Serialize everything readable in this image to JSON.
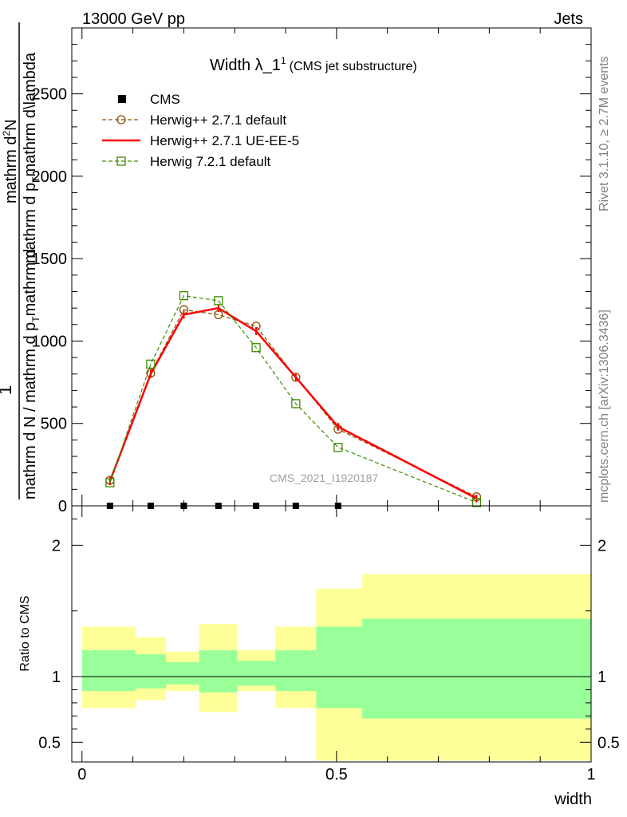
{
  "header": {
    "left": "13000 GeV pp",
    "right": "Jets"
  },
  "side_texts": {
    "rivet": "Rivet 3.1.10, ≥ 2.7M events",
    "mcplots": "mcplots.cern.ch [arXiv:1306.3436]"
  },
  "chart_data": [
    {
      "type": "line",
      "title_main": "Width λ_1",
      "title_sup": "1",
      "title_note": "(CMS jet substructure)",
      "ylabel_num": "1",
      "ylabel_line1": "mathrm d N / mathrm d p",
      "ylabel_sub1": "T",
      "ylabel_line2": "mathrm d",
      "ylabel_den_line1": "mathrm d N / mathrm d p",
      "ylabel_den_sub1": "T",
      "ylabel_den_line2": "mathrm d",
      "ylabel_top_num": "mathrm d",
      "ylabel_top_N": "N",
      "ylabel_top_den": "mathrm d p",
      "ylabel_top_den_sub": "T",
      "ylabel_top_den2": "mathrm d\\lambda",
      "ylabel_raw": "mathrm d²N / mathrm d p_T mathrm d \\lambda",
      "watermark": "CMS_2021_I1920187",
      "ylim": [
        0,
        2900
      ],
      "xlim": [
        -0.02,
        1.0
      ],
      "yticks": [
        0,
        500,
        1000,
        1500,
        2000,
        2500
      ],
      "ytick_labels": [
        "0",
        "500",
        "1000",
        "1500",
        "2000",
        "2500"
      ],
      "legend_position": "top-left",
      "series": [
        {
          "name": "CMS",
          "color": "#000000",
          "style": "data",
          "x": [
            0.055,
            0.135,
            0.2,
            0.268,
            0.342,
            0.42,
            0.503
          ],
          "y": [
            0,
            0,
            0,
            0,
            0,
            0,
            0
          ]
        },
        {
          "name": "Herwig++ 2.7.1 default",
          "color": "#8b4a00",
          "style": "dashed-circle",
          "x": [
            0.055,
            0.135,
            0.2,
            0.268,
            0.342,
            0.42,
            0.503,
            0.775
          ],
          "y": [
            155,
            805,
            1190,
            1160,
            1090,
            780,
            465,
            55
          ]
        },
        {
          "name": "Herwig++ 2.7.1 UE-EE-5",
          "color": "#ff0000",
          "style": "solid",
          "x": [
            0.055,
            0.135,
            0.2,
            0.268,
            0.342,
            0.42,
            0.503,
            0.775
          ],
          "y": [
            150,
            800,
            1160,
            1200,
            1060,
            780,
            480,
            45
          ]
        },
        {
          "name": "Herwig 7.2.1 default",
          "color": "#3d8b00",
          "style": "dashed-square",
          "x": [
            0.055,
            0.135,
            0.2,
            0.268,
            0.342,
            0.42,
            0.503,
            0.775
          ],
          "y": [
            140,
            860,
            1275,
            1245,
            960,
            620,
            355,
            20
          ]
        }
      ]
    },
    {
      "type": "area",
      "ylabel": "Ratio to CMS",
      "xlabel": "width",
      "ylim": [
        0.35,
        2.3
      ],
      "xlim": [
        -0.02,
        1.0
      ],
      "yticks": [
        0.5,
        1,
        2
      ],
      "ytick_labels": [
        "0.5",
        "1",
        "2"
      ],
      "xticks": [
        0,
        0.5,
        1
      ],
      "xtick_labels": [
        "0",
        "0.5",
        "1"
      ],
      "bins": [
        {
          "lo": 0.0,
          "hi": 0.105,
          "inner": [
            0.89,
            1.2
          ],
          "outer": [
            0.76,
            1.38
          ]
        },
        {
          "lo": 0.105,
          "hi": 0.165,
          "inner": [
            0.91,
            1.17
          ],
          "outer": [
            0.82,
            1.3
          ]
        },
        {
          "lo": 0.165,
          "hi": 0.23,
          "inner": [
            0.94,
            1.11
          ],
          "outer": [
            0.89,
            1.19
          ]
        },
        {
          "lo": 0.23,
          "hi": 0.305,
          "inner": [
            0.88,
            1.2
          ],
          "outer": [
            0.73,
            1.4
          ]
        },
        {
          "lo": 0.305,
          "hi": 0.38,
          "inner": [
            0.93,
            1.12
          ],
          "outer": [
            0.89,
            1.2
          ]
        },
        {
          "lo": 0.38,
          "hi": 0.46,
          "inner": [
            0.89,
            1.2
          ],
          "outer": [
            0.76,
            1.38
          ]
        },
        {
          "lo": 0.46,
          "hi": 0.55,
          "inner": [
            0.76,
            1.38
          ],
          "outer": [
            0.36,
            1.67
          ]
        },
        {
          "lo": 0.55,
          "hi": 1.0,
          "inner": [
            0.68,
            1.44
          ],
          "outer": [
            0.36,
            1.78
          ]
        }
      ],
      "colors": {
        "inner": "#99ff99",
        "outer": "#ffff99"
      }
    }
  ]
}
